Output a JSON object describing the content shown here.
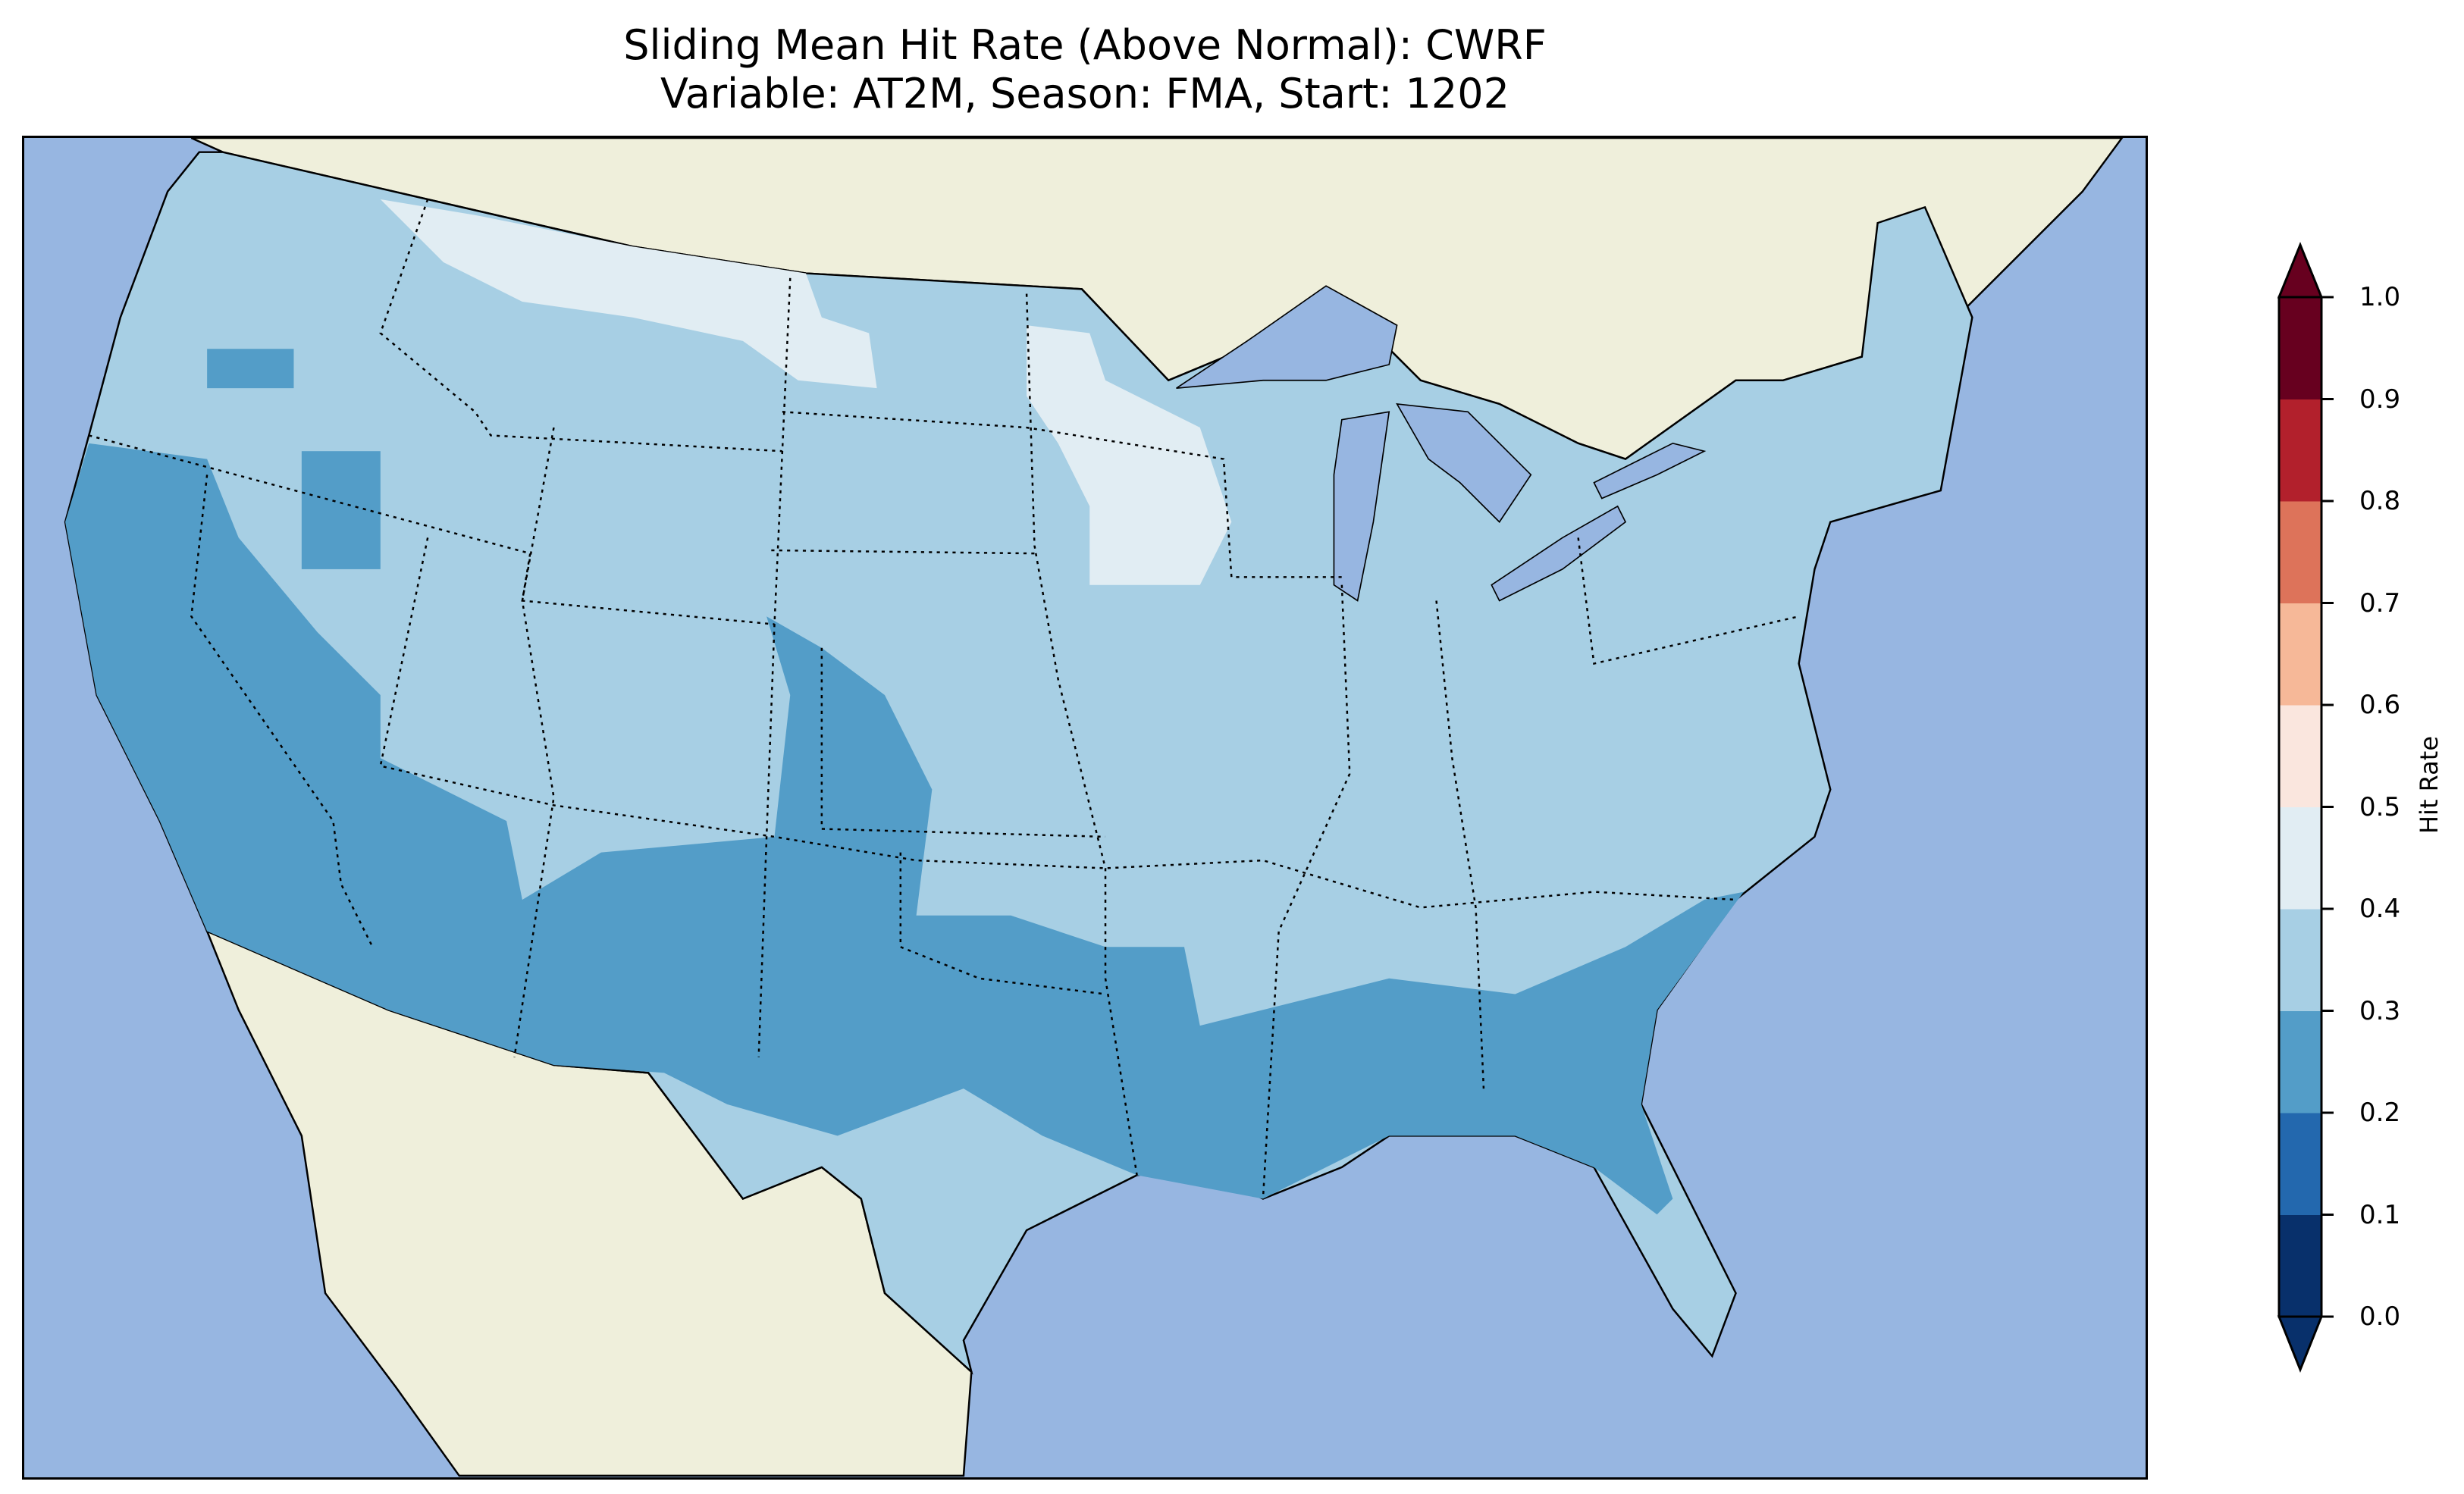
{
  "title": {
    "line1": "Sliding Mean Hit Rate (Above Normal): CWRF",
    "line2": "Variable: AT2M, Season: FMA, Start: 1202"
  },
  "colors": {
    "ocean": "#97b6e1",
    "land": "#efefdb",
    "lakes": "#97b6e1"
  },
  "colorbar": {
    "label": "Hit Rate",
    "ticks": [
      "0.0",
      "0.1",
      "0.2",
      "0.3",
      "0.4",
      "0.5",
      "0.6",
      "0.7",
      "0.8",
      "0.9",
      "1.0"
    ],
    "bins": [
      "#08306b",
      "#2368ae",
      "#539dc8",
      "#a7cfe4",
      "#e1edf3",
      "#fae6de",
      "#f6b898",
      "#dd735a",
      "#b2202c",
      "#67001f"
    ],
    "under": "#08306b",
    "over": "#67001f"
  },
  "chart_data": {
    "type": "heatmap",
    "title": "Sliding Mean Hit Rate (Above Normal): CWRF",
    "subtitle": "Variable: AT2M, Season: FMA, Start: 1202",
    "colorbar_label": "Hit Rate",
    "range": [
      0,
      1
    ],
    "levels": [
      0,
      0.1,
      0.2,
      0.3,
      0.4,
      0.5,
      0.6,
      0.7,
      0.8,
      0.9,
      1.0
    ],
    "dominant_range": [
      0.3,
      0.4
    ],
    "lower_region_range": [
      0.2,
      0.3
    ],
    "upper_region_range": [
      0.4,
      0.5
    ]
  }
}
